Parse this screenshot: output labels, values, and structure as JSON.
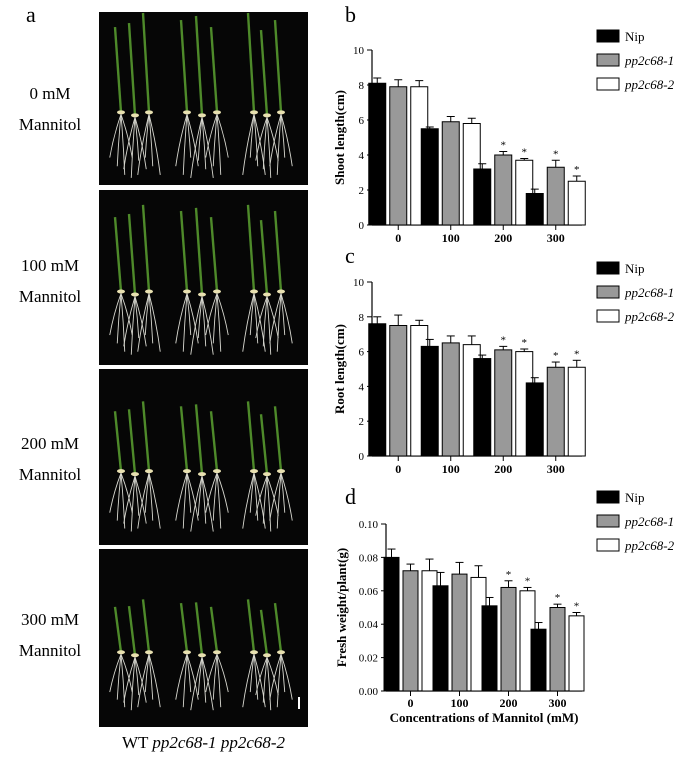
{
  "panel_letters": {
    "a": "a",
    "b": "b",
    "c": "c",
    "d": "d"
  },
  "photo_panel": {
    "conditions": [
      {
        "line1": "0 mM",
        "line2": "Mannitol"
      },
      {
        "line1": "100 mM",
        "line2": "Mannitol"
      },
      {
        "line1": "200 mM",
        "line2": "Mannitol"
      },
      {
        "line1": "300 mM",
        "line2": "Mannitol"
      }
    ],
    "caption_wt": "WT",
    "caption_m1": "pp2c68-1",
    "caption_m2": "pp2c68-2",
    "scale_bar_color": "#ffffff"
  },
  "series_colors": {
    "Nip": "#000000",
    "pp2c68-1": "#999999",
    "pp2c68-2": "#ffffff"
  },
  "chart_data": [
    {
      "id": "b",
      "type": "bar",
      "categories": [
        "0",
        "100",
        "200",
        "300"
      ],
      "ylabel": "Shoot length(cm)",
      "xlabel": "",
      "ylim": [
        0,
        10
      ],
      "yticks": [
        0,
        2,
        4,
        6,
        8,
        10
      ],
      "legend_position": "top-right",
      "series": [
        {
          "name": "Nip",
          "italic": false,
          "values": [
            8.1,
            5.5,
            3.2,
            1.8
          ],
          "errors": [
            0.3,
            0.1,
            0.3,
            0.25
          ],
          "sig": [
            false,
            false,
            false,
            false
          ]
        },
        {
          "name": "pp2c68-1",
          "italic": true,
          "values": [
            7.9,
            5.9,
            4.0,
            3.3
          ],
          "errors": [
            0.4,
            0.3,
            0.2,
            0.4
          ],
          "sig": [
            false,
            false,
            true,
            true
          ]
        },
        {
          "name": "pp2c68-2",
          "italic": true,
          "values": [
            7.9,
            5.8,
            3.7,
            2.5
          ],
          "errors": [
            0.35,
            0.3,
            0.1,
            0.3
          ],
          "sig": [
            false,
            false,
            true,
            true
          ]
        }
      ]
    },
    {
      "id": "c",
      "type": "bar",
      "categories": [
        "0",
        "100",
        "200",
        "300"
      ],
      "ylabel": "Root length(cm)",
      "xlabel": "",
      "ylim": [
        0,
        10
      ],
      "yticks": [
        0,
        2,
        4,
        6,
        8,
        10
      ],
      "legend_position": "top-right",
      "series": [
        {
          "name": "Nip",
          "italic": false,
          "values": [
            7.6,
            6.3,
            5.6,
            4.2
          ],
          "errors": [
            0.4,
            0.4,
            0.2,
            0.3
          ],
          "sig": [
            false,
            false,
            false,
            false
          ]
        },
        {
          "name": "pp2c68-1",
          "italic": true,
          "values": [
            7.5,
            6.5,
            6.1,
            5.1
          ],
          "errors": [
            0.6,
            0.4,
            0.2,
            0.3
          ],
          "sig": [
            false,
            false,
            true,
            true
          ]
        },
        {
          "name": "pp2c68-2",
          "italic": true,
          "values": [
            7.5,
            6.4,
            6.0,
            5.1
          ],
          "errors": [
            0.3,
            0.5,
            0.15,
            0.4
          ],
          "sig": [
            false,
            false,
            true,
            true
          ]
        }
      ]
    },
    {
      "id": "d",
      "type": "bar",
      "categories": [
        "0",
        "100",
        "200",
        "300"
      ],
      "ylabel": "Fresh weight/plant(g)",
      "xlabel": "Concentrations of Mannitol (mM)",
      "ylim": [
        0,
        0.1
      ],
      "yticks": [
        "0.00",
        "0.02",
        "0.04",
        "0.06",
        "0.08",
        "0.10"
      ],
      "legend_position": "top-right",
      "series": [
        {
          "name": "Nip",
          "italic": false,
          "values": [
            0.08,
            0.063,
            0.051,
            0.037
          ],
          "errors": [
            0.005,
            0.008,
            0.005,
            0.004
          ],
          "sig": [
            false,
            false,
            false,
            false
          ]
        },
        {
          "name": "pp2c68-1",
          "italic": true,
          "values": [
            0.072,
            0.07,
            0.062,
            0.05
          ],
          "errors": [
            0.004,
            0.007,
            0.004,
            0.002
          ],
          "sig": [
            false,
            false,
            true,
            true
          ]
        },
        {
          "name": "pp2c68-2",
          "italic": true,
          "values": [
            0.072,
            0.068,
            0.06,
            0.045
          ],
          "errors": [
            0.007,
            0.007,
            0.002,
            0.002
          ],
          "sig": [
            false,
            false,
            true,
            true
          ]
        }
      ]
    }
  ]
}
